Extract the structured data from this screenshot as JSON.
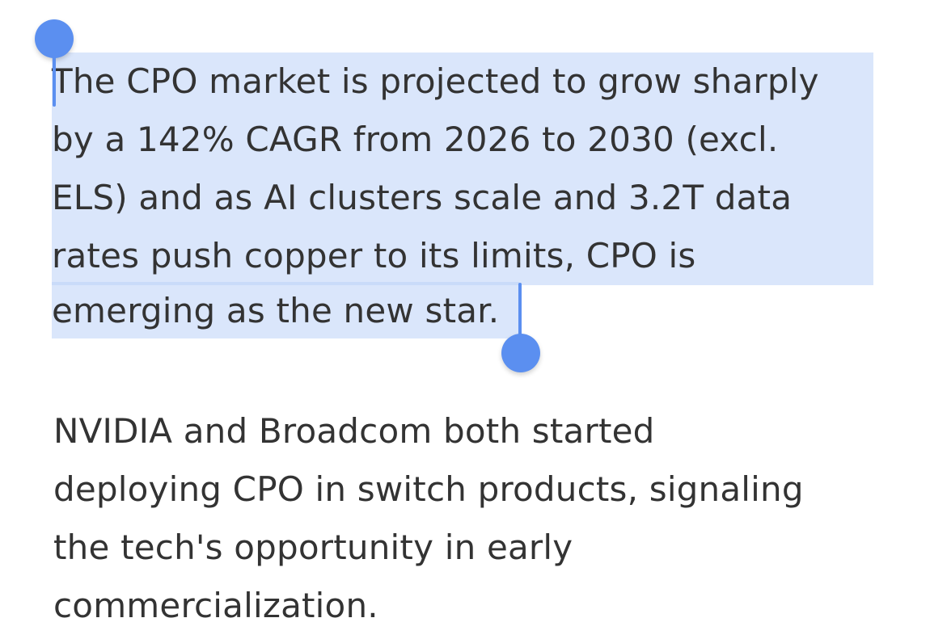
{
  "selected_paragraph": {
    "lines": [
      "The CPO market is projected to grow sharply",
      "by a 142% CAGR from 2026 to 2030 (excl.",
      "ELS) and as AI clusters scale and 3.2T data",
      "rates push copper to its limits, CPO is",
      "emerging as the new star."
    ]
  },
  "second_paragraph": {
    "lines": [
      "NVIDIA and Broadcom both started",
      "deploying CPO in switch products, signaling",
      "the tech's opportunity in early",
      "commercialization."
    ]
  },
  "colors": {
    "text": "#333333",
    "selection": "#dbe6f9",
    "handle": "#5b8ff0"
  }
}
